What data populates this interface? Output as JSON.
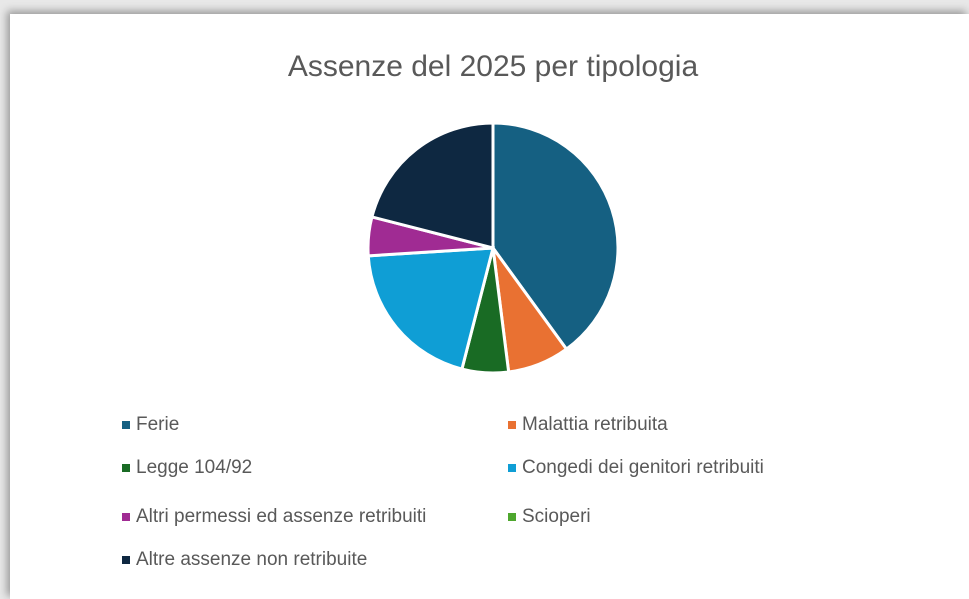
{
  "chart_data": {
    "type": "pie",
    "title": "Assenze del 2025 per tipologia",
    "categories": [
      "Ferie",
      "Malattia retribuita",
      "Legge 104/92",
      "Congedi dei genitori retribuiti",
      "Altri permessi ed assenze retribuiti",
      "Scioperi",
      "Altre assenze non retribuite"
    ],
    "values": [
      40,
      8,
      6,
      20,
      5,
      0,
      21
    ],
    "colors": [
      "#156082",
      "#e97132",
      "#196b24",
      "#0f9ed5",
      "#a02b93",
      "#4ea72e",
      "#0e2841"
    ]
  }
}
